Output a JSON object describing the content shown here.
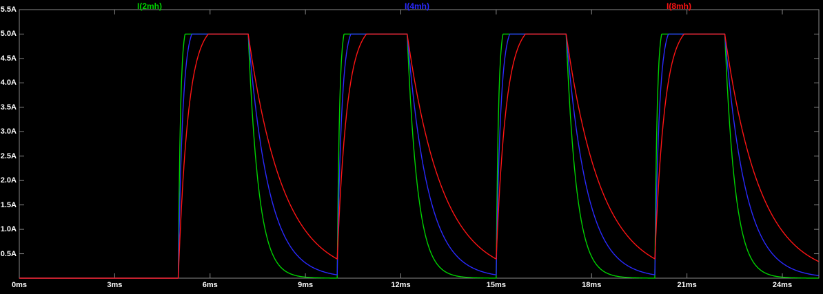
{
  "window": {
    "background": "#000000",
    "description": "LTspice-style transient waveform viewer pane"
  },
  "chart_data": {
    "type": "line",
    "title": "",
    "x_unit": "ms",
    "y_unit": "A",
    "x_range": [
      0,
      25.15
    ],
    "y_range": [
      0,
      5.5
    ],
    "grid": false,
    "legend_position": "top",
    "axis_color": "#8a8a8a",
    "text_color": "#ffffff",
    "x_ticks": [
      "0ms",
      "3ms",
      "6ms",
      "9ms",
      "12ms",
      "15ms",
      "18ms",
      "21ms",
      "24ms"
    ],
    "x_tick_values": [
      0,
      3,
      6,
      9,
      12,
      15,
      18,
      21,
      24
    ],
    "y_ticks": [
      "5.5A",
      "5.0A",
      "4.5A",
      "4.0A",
      "3.5A",
      "3.0A",
      "2.5A",
      "2.0A",
      "1.5A",
      "1.0A",
      "0.5A"
    ],
    "y_tick_values": [
      5.5,
      5.0,
      4.5,
      4.0,
      3.5,
      3.0,
      2.5,
      2.0,
      1.5,
      1.0,
      0.5
    ],
    "pulses": {
      "starts_ms": [
        5,
        10,
        15,
        20
      ],
      "ends_ms": [
        7.2,
        12.2,
        17.2,
        22.2
      ],
      "rise_target_A": 5.25
    },
    "series": [
      {
        "name": "I(2mh)",
        "color": "#00d200",
        "amplitude_A": 5.0,
        "rise_tau_ms": 0.07,
        "decay_tau_ms": 0.33,
        "key_points": "0A until 5ms; rises to 5A in ~0.2ms at each pulse start; flat 5A until pulse end; fastest exponential decay, ~0A within ~1.5ms"
      },
      {
        "name": "I(4mh)",
        "color": "#2a2aff",
        "amplitude_A": 5.0,
        "rise_tau_ms": 0.14,
        "decay_tau_ms": 0.65,
        "key_points": "0A until 5ms; rises to 5A in ~0.45ms; flat 5A until pulse end; medium decay, ~0.3A 1.8ms after pulse end"
      },
      {
        "name": "I(8mh)",
        "color": "#ff1414",
        "amplitude_A": 5.0,
        "rise_tau_ms": 0.31,
        "decay_tau_ms": 1.1,
        "key_points": "0A until 5ms; rises to 5A in ~0.9ms; flat 5A until pulse end; slowest decay, ~1A 1.8ms after pulse end, ~0.35A at next pulse start"
      }
    ]
  }
}
